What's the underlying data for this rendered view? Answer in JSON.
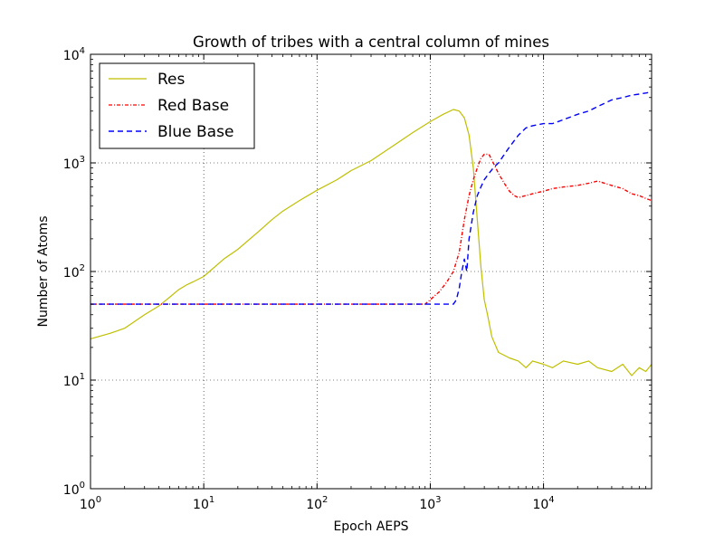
{
  "chart_data": {
    "type": "line",
    "title": "Growth of tribes with a central column of mines",
    "xlabel": "Epoch AEPS",
    "ylabel": "Number of Atoms",
    "xscale": "log",
    "yscale": "log",
    "xlim": [
      1,
      90000
    ],
    "ylim": [
      1,
      10000
    ],
    "grid": true,
    "legend_position": "top-left",
    "x_ticks": [
      {
        "base": "10",
        "exp": "0"
      },
      {
        "base": "10",
        "exp": "1"
      },
      {
        "base": "10",
        "exp": "2"
      },
      {
        "base": "10",
        "exp": "3"
      },
      {
        "base": "10",
        "exp": "4"
      }
    ],
    "y_ticks": [
      {
        "base": "10",
        "exp": "0"
      },
      {
        "base": "10",
        "exp": "1"
      },
      {
        "base": "10",
        "exp": "2"
      },
      {
        "base": "10",
        "exp": "3"
      },
      {
        "base": "10",
        "exp": "4"
      }
    ],
    "series": [
      {
        "name": "Res",
        "color": "#bfbf00",
        "style": "solid",
        "x": [
          1,
          1.5,
          2,
          3,
          4,
          5,
          6,
          7,
          8,
          10,
          15,
          20,
          30,
          40,
          50,
          70,
          100,
          150,
          200,
          300,
          500,
          700,
          1000,
          1300,
          1600,
          1800,
          2000,
          2200,
          2400,
          2600,
          2800,
          3000,
          3200,
          3500,
          4000,
          5000,
          6000,
          7000,
          8000,
          10000,
          12000,
          15000,
          20000,
          25000,
          30000,
          40000,
          50000,
          60000,
          70000,
          80000,
          90000
        ],
        "y": [
          24,
          27,
          30,
          40,
          48,
          58,
          68,
          75,
          80,
          90,
          130,
          160,
          230,
          300,
          360,
          450,
          560,
          700,
          850,
          1050,
          1500,
          1900,
          2400,
          2800,
          3100,
          3000,
          2600,
          1800,
          900,
          300,
          110,
          55,
          40,
          25,
          18,
          16,
          15,
          13,
          15,
          14,
          13,
          15,
          14,
          15,
          13,
          12,
          14,
          11,
          13,
          12,
          14
        ]
      },
      {
        "name": "Red Base",
        "color": "#ff0000",
        "style": "dashdot",
        "x": [
          1,
          100,
          500,
          900,
          1000,
          1200,
          1400,
          1600,
          1800,
          2000,
          2200,
          2400,
          2600,
          2800,
          3000,
          3300,
          3600,
          4000,
          4500,
          5000,
          5500,
          6000,
          7000,
          8000,
          10000,
          12000,
          15000,
          20000,
          25000,
          30000,
          40000,
          50000,
          60000,
          70000,
          80000,
          90000
        ],
        "y": [
          50,
          50,
          50,
          50,
          55,
          65,
          80,
          100,
          150,
          300,
          500,
          700,
          900,
          1100,
          1200,
          1200,
          1000,
          800,
          650,
          550,
          500,
          480,
          500,
          520,
          550,
          580,
          600,
          620,
          650,
          680,
          620,
          580,
          520,
          500,
          470,
          450
        ]
      },
      {
        "name": "Blue Base",
        "color": "#0000ff",
        "style": "dashed",
        "x": [
          1,
          100,
          1000,
          1600,
          1700,
          1800,
          1900,
          2000,
          2100,
          2200,
          2400,
          2600,
          2800,
          3000,
          3300,
          3600,
          4000,
          5000,
          6000,
          7000,
          8000,
          10000,
          12000,
          15000,
          20000,
          25000,
          30000,
          40000,
          50000,
          60000,
          70000,
          80000,
          90000
        ],
        "y": [
          50,
          50,
          50,
          50,
          55,
          70,
          100,
          130,
          100,
          200,
          350,
          500,
          600,
          700,
          800,
          900,
          1000,
          1400,
          1800,
          2100,
          2200,
          2300,
          2300,
          2500,
          2800,
          3000,
          3300,
          3800,
          4000,
          4200,
          4300,
          4400,
          4500
        ]
      }
    ]
  }
}
